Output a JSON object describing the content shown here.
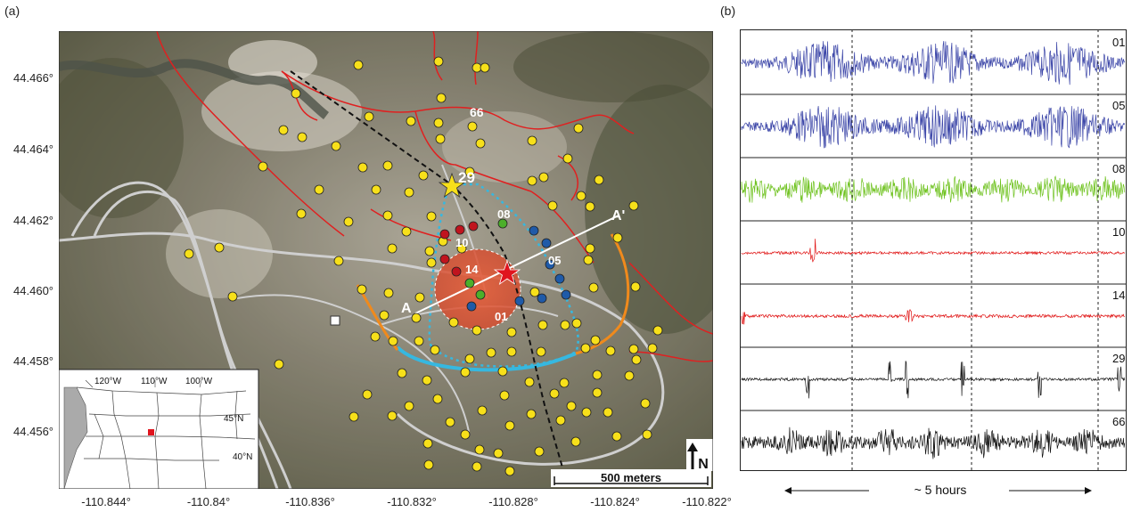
{
  "panels": {
    "a": "(a)",
    "b": "(b)"
  },
  "map": {
    "lat_ticks": [
      "44.466°",
      "44.464°",
      "44.462°",
      "44.460°",
      "44.458°",
      "44.456°"
    ],
    "lon_ticks": [
      "-110.844°",
      "-110.84°",
      "-110.836°",
      "-110.832°",
      "-110.828°",
      "-110.824°",
      "-110.822°"
    ],
    "labels": {
      "s66": "66",
      "s29": "29",
      "s08": "08",
      "s10": "10",
      "s14": "14",
      "s05": "05",
      "s01": "01",
      "a": "A",
      "a_prime": "A'"
    },
    "scale_bar": "500 meters",
    "north": "N",
    "inset": {
      "w120": "120°W",
      "w110": "110°W",
      "w100": "100°W",
      "n45": "45°N",
      "n40": "40°N"
    },
    "colors": {
      "station": "#f7e01a",
      "red": "#c0141e",
      "blue": "#1f5aa8",
      "green": "#4caf2a",
      "hull": "#36b8e0",
      "orange": "#f08a1c",
      "road": "#e02020"
    }
  },
  "traces": {
    "items": [
      {
        "id": "01",
        "color": "#3c46a8"
      },
      {
        "id": "05",
        "color": "#3c46a8"
      },
      {
        "id": "08",
        "color": "#6ec21e"
      },
      {
        "id": "10",
        "color": "#e01414"
      },
      {
        "id": "14",
        "color": "#e01414"
      },
      {
        "id": "29",
        "color": "#111111"
      },
      {
        "id": "66",
        "color": "#111111"
      }
    ],
    "time_label": "~ 5 hours"
  }
}
